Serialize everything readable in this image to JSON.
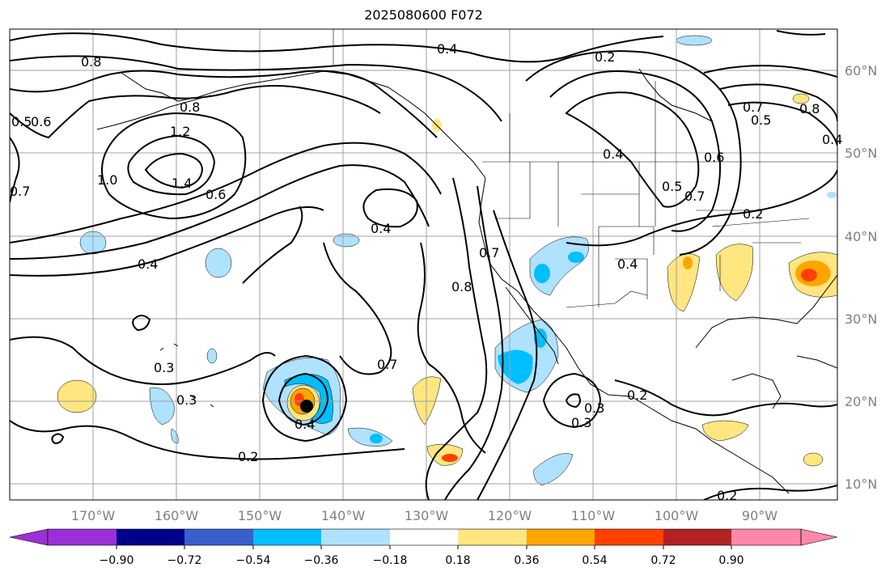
{
  "title": "2025080600 F072",
  "map": {
    "lon_labels": [
      "170°W",
      "160°W",
      "150°W",
      "140°W",
      "130°W",
      "120°W",
      "110°W",
      "100°W",
      "90°W"
    ],
    "lat_labels": [
      "60°N",
      "50°N",
      "40°N",
      "30°N",
      "20°N",
      "10°N"
    ],
    "contour_labels": [
      "0.8",
      "0.4",
      "0.2",
      "0.5",
      "0.6",
      "0.7",
      "1.2",
      "1.4",
      "1.0",
      "0.8",
      "0.6",
      "0.4",
      "0.8",
      "0.4",
      "0.7",
      "0.3",
      "0.3",
      "0.4",
      "0.2",
      "0.7",
      "0.4",
      "0.3",
      "0.2",
      "0.2",
      "0.8",
      "0.7",
      "0.5",
      "0.4",
      "0.6",
      "0.5",
      "0.7",
      "0.2",
      "0.4",
      "0.3"
    ],
    "storm_marker": "tropical cyclone position"
  },
  "colorbar": {
    "tick_labels": [
      "−0.90",
      "−0.72",
      "−0.54",
      "−0.36",
      "−0.18",
      "0.18",
      "0.36",
      "0.54",
      "0.72",
      "0.90"
    ],
    "colors": [
      "#9b30d9",
      "#00008b",
      "#3a5fcd",
      "#00bfff",
      "#aee2ff",
      "#ffffff",
      "#ffe680",
      "#ffa500",
      "#ff4000",
      "#b22222",
      "#ff88aa"
    ]
  }
}
